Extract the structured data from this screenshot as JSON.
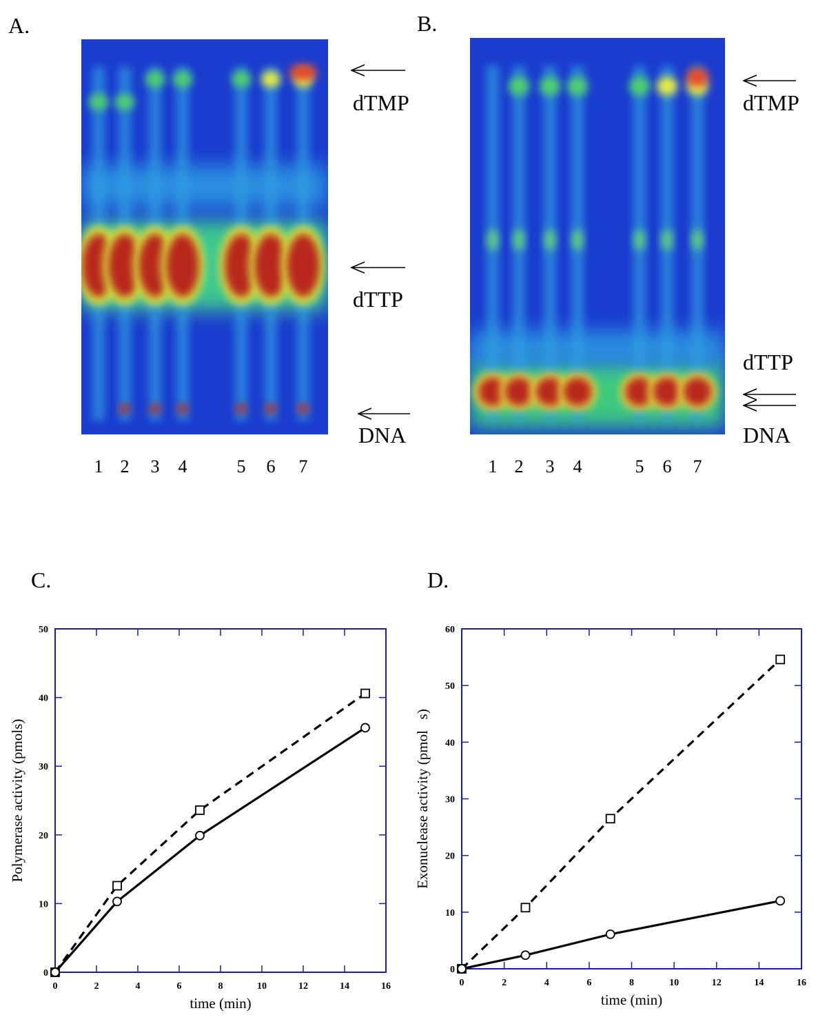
{
  "gels": [
    {
      "panel": "A.",
      "lanes": [
        "1",
        "2",
        "3",
        "4",
        "5",
        "6",
        "7"
      ],
      "labels": [
        "dTMP",
        "dTTP",
        "DNA"
      ]
    },
    {
      "panel": "B.",
      "lanes": [
        "1",
        "2",
        "3",
        "4",
        "5",
        "6",
        "7"
      ],
      "labels": [
        "dTMP",
        "dTTP",
        "DNA"
      ]
    }
  ],
  "chart_data": [
    {
      "type": "line",
      "title": "C.",
      "xlabel": "time (min)",
      "ylabel": "Polymerase activity (pmols)",
      "x": [
        0,
        3,
        7,
        15
      ],
      "xlim": [
        0,
        16
      ],
      "xticks": [
        0,
        2,
        4,
        6,
        8,
        10,
        12,
        14,
        16
      ],
      "ylim": [
        0,
        50
      ],
      "yticks": [
        0,
        10,
        20,
        30,
        40,
        50
      ],
      "frame_color": "#1a1aa8",
      "series": [
        {
          "color": "#000000",
          "marker": "square",
          "dashed": true,
          "values": [
            0,
            12.6,
            23.6,
            40.6
          ]
        },
        {
          "color": "#000000",
          "marker": "circle",
          "dashed": false,
          "values": [
            0,
            10.3,
            19.9,
            35.6
          ]
        }
      ]
    },
    {
      "type": "line",
      "title": "D.",
      "xlabel": "time (min)",
      "ylabel": "Exonuclease activity (pmol   s)",
      "x": [
        0,
        3,
        7,
        15
      ],
      "xlim": [
        0,
        16
      ],
      "xticks": [
        0,
        2,
        4,
        6,
        8,
        10,
        12,
        14,
        16
      ],
      "ylim": [
        0,
        60
      ],
      "yticks": [
        0,
        10,
        20,
        30,
        40,
        50,
        60
      ],
      "frame_color": "#1a1aa8",
      "series": [
        {
          "color": "#000000",
          "marker": "square",
          "dashed": true,
          "values": [
            0,
            10.8,
            26.5,
            54.6
          ]
        },
        {
          "color": "#000000",
          "marker": "circle",
          "dashed": false,
          "values": [
            0,
            2.4,
            6.1,
            12.0
          ]
        }
      ]
    }
  ]
}
